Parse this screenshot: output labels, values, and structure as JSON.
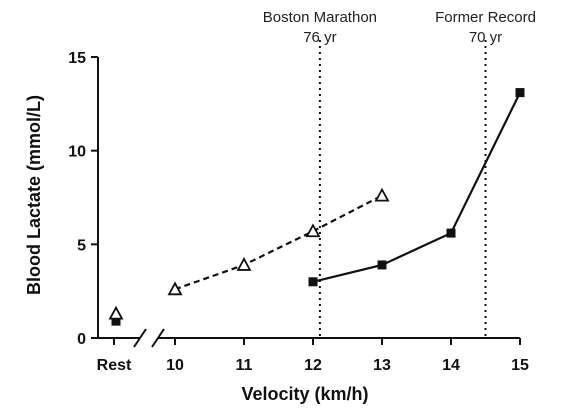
{
  "chart_data": {
    "type": "line",
    "xlabel": "Velocity (km/h)",
    "ylabel": "Blood Lactate (mmol/L)",
    "ylim": [
      0,
      15
    ],
    "yticks": [
      0,
      5,
      10,
      15
    ],
    "xlim": [
      9.5,
      15
    ],
    "xticks": [
      10,
      11,
      12,
      13,
      14,
      15
    ],
    "rest_label": "Rest",
    "axis_break": true,
    "grid": false,
    "series": [
      {
        "marker": "square",
        "line_style": "solid",
        "color": "#111111",
        "rest_value": 0.9,
        "x": [
          12,
          13,
          14,
          15
        ],
        "y": [
          3.0,
          3.9,
          5.6,
          13.1
        ]
      },
      {
        "marker": "triangle-open",
        "line_style": "dashed",
        "color": "#111111",
        "rest_value": 1.3,
        "x": [
          10,
          11,
          12,
          13
        ],
        "y": [
          2.6,
          3.9,
          5.7,
          7.6
        ]
      }
    ],
    "annotations": [
      {
        "x": 12.1,
        "line_style": "dotted",
        "label_line1": "Boston Marathon",
        "label_line2": "76 yr"
      },
      {
        "x": 14.5,
        "line_style": "dotted",
        "label_line1": "Former Record",
        "label_line2": "70 yr"
      }
    ]
  }
}
